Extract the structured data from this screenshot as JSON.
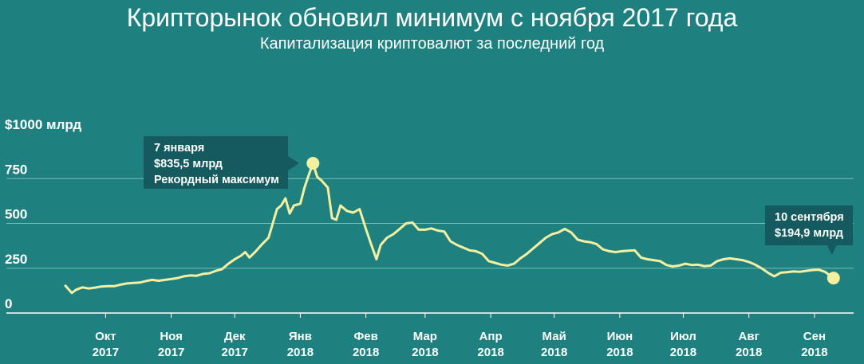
{
  "title": "Крипторынок обновил минимум с ноября 2017 года",
  "subtitle": "Капитализация криптовалют за последний год",
  "colors": {
    "background": "#1f8080",
    "line": "#f5f0a0",
    "gridline": "#7bb9b9",
    "annotation_box": "#155a5e"
  },
  "chart_data": {
    "type": "line",
    "title": "Крипторынок обновил минимум с ноября 2017 года",
    "subtitle": "Капитализация криптовалют за последний год",
    "xlabel": "",
    "ylabel": "",
    "ylim": [
      0,
      1000
    ],
    "yticks": [
      {
        "value": 0,
        "label": "0"
      },
      {
        "value": 250,
        "label": "250"
      },
      {
        "value": 500,
        "label": "500"
      },
      {
        "value": 750,
        "label": "750"
      },
      {
        "value": 1000,
        "label": "$1000 млрд"
      }
    ],
    "xlim": [
      "2017-09-12",
      "2018-09-18"
    ],
    "xticks": [
      {
        "date": "2017-10-01",
        "month": "Окт",
        "year": "2017"
      },
      {
        "date": "2017-11-01",
        "month": "Ноя",
        "year": "2017"
      },
      {
        "date": "2017-12-01",
        "month": "Дек",
        "year": "2017"
      },
      {
        "date": "2018-01-01",
        "month": "Янв",
        "year": "2018"
      },
      {
        "date": "2018-02-01",
        "month": "Фев",
        "year": "2018"
      },
      {
        "date": "2018-03-01",
        "month": "Мар",
        "year": "2018"
      },
      {
        "date": "2018-04-01",
        "month": "Апр",
        "year": "2018"
      },
      {
        "date": "2018-05-01",
        "month": "Май",
        "year": "2018"
      },
      {
        "date": "2018-06-01",
        "month": "Июн",
        "year": "2018"
      },
      {
        "date": "2018-07-01",
        "month": "Июл",
        "year": "2018"
      },
      {
        "date": "2018-08-01",
        "month": "Авг",
        "year": "2018"
      },
      {
        "date": "2018-09-01",
        "month": "Сен",
        "year": "2018"
      }
    ],
    "grid": "horizontal",
    "series": [
      {
        "points": [
          [
            "2017-09-12",
            152
          ],
          [
            "2017-09-15",
            112
          ],
          [
            "2017-09-17",
            130
          ],
          [
            "2017-09-20",
            143
          ],
          [
            "2017-09-23",
            137
          ],
          [
            "2017-09-26",
            142
          ],
          [
            "2017-09-29",
            148
          ],
          [
            "2017-10-02",
            150
          ],
          [
            "2017-10-05",
            150
          ],
          [
            "2017-10-08",
            158
          ],
          [
            "2017-10-11",
            165
          ],
          [
            "2017-10-14",
            168
          ],
          [
            "2017-10-17",
            170
          ],
          [
            "2017-10-20",
            178
          ],
          [
            "2017-10-23",
            185
          ],
          [
            "2017-10-26",
            180
          ],
          [
            "2017-10-29",
            185
          ],
          [
            "2017-11-01",
            190
          ],
          [
            "2017-11-04",
            195
          ],
          [
            "2017-11-07",
            205
          ],
          [
            "2017-11-10",
            210
          ],
          [
            "2017-11-13",
            208
          ],
          [
            "2017-11-16",
            218
          ],
          [
            "2017-11-19",
            222
          ],
          [
            "2017-11-22",
            235
          ],
          [
            "2017-11-25",
            245
          ],
          [
            "2017-11-28",
            275
          ],
          [
            "2017-12-01",
            300
          ],
          [
            "2017-12-04",
            320
          ],
          [
            "2017-12-06",
            340
          ],
          [
            "2017-12-08",
            310
          ],
          [
            "2017-12-11",
            345
          ],
          [
            "2017-12-14",
            385
          ],
          [
            "2017-12-17",
            420
          ],
          [
            "2017-12-19",
            500
          ],
          [
            "2017-12-21",
            580
          ],
          [
            "2017-12-23",
            600
          ],
          [
            "2017-12-25",
            640
          ],
          [
            "2017-12-27",
            555
          ],
          [
            "2017-12-29",
            600
          ],
          [
            "2018-01-01",
            610
          ],
          [
            "2018-01-03",
            700
          ],
          [
            "2018-01-05",
            770
          ],
          [
            "2018-01-07",
            835.5
          ],
          [
            "2018-01-09",
            760
          ],
          [
            "2018-01-11",
            740
          ],
          [
            "2018-01-14",
            700
          ],
          [
            "2018-01-16",
            530
          ],
          [
            "2018-01-18",
            520
          ],
          [
            "2018-01-20",
            600
          ],
          [
            "2018-01-23",
            570
          ],
          [
            "2018-01-26",
            560
          ],
          [
            "2018-01-29",
            580
          ],
          [
            "2018-02-01",
            470
          ],
          [
            "2018-02-03",
            400
          ],
          [
            "2018-02-06",
            300
          ],
          [
            "2018-02-08",
            380
          ],
          [
            "2018-02-11",
            420
          ],
          [
            "2018-02-14",
            440
          ],
          [
            "2018-02-17",
            470
          ],
          [
            "2018-02-20",
            500
          ],
          [
            "2018-02-23",
            505
          ],
          [
            "2018-02-26",
            465
          ],
          [
            "2018-03-01",
            465
          ],
          [
            "2018-03-04",
            472
          ],
          [
            "2018-03-07",
            460
          ],
          [
            "2018-03-10",
            455
          ],
          [
            "2018-03-13",
            400
          ],
          [
            "2018-03-16",
            380
          ],
          [
            "2018-03-19",
            365
          ],
          [
            "2018-03-22",
            350
          ],
          [
            "2018-03-25",
            345
          ],
          [
            "2018-03-28",
            330
          ],
          [
            "2018-03-31",
            290
          ],
          [
            "2018-04-03",
            280
          ],
          [
            "2018-04-06",
            270
          ],
          [
            "2018-04-09",
            265
          ],
          [
            "2018-04-12",
            275
          ],
          [
            "2018-04-15",
            305
          ],
          [
            "2018-04-18",
            330
          ],
          [
            "2018-04-21",
            360
          ],
          [
            "2018-04-24",
            390
          ],
          [
            "2018-04-27",
            420
          ],
          [
            "2018-04-30",
            440
          ],
          [
            "2018-05-03",
            450
          ],
          [
            "2018-05-06",
            470
          ],
          [
            "2018-05-09",
            450
          ],
          [
            "2018-05-12",
            410
          ],
          [
            "2018-05-15",
            400
          ],
          [
            "2018-05-18",
            395
          ],
          [
            "2018-05-21",
            385
          ],
          [
            "2018-05-24",
            355
          ],
          [
            "2018-05-27",
            345
          ],
          [
            "2018-05-30",
            340
          ],
          [
            "2018-06-02",
            345
          ],
          [
            "2018-06-05",
            348
          ],
          [
            "2018-06-08",
            350
          ],
          [
            "2018-06-11",
            310
          ],
          [
            "2018-06-14",
            300
          ],
          [
            "2018-06-17",
            295
          ],
          [
            "2018-06-20",
            290
          ],
          [
            "2018-06-23",
            268
          ],
          [
            "2018-06-26",
            260
          ],
          [
            "2018-06-29",
            265
          ],
          [
            "2018-07-02",
            275
          ],
          [
            "2018-07-05",
            268
          ],
          [
            "2018-07-08",
            270
          ],
          [
            "2018-07-11",
            262
          ],
          [
            "2018-07-14",
            265
          ],
          [
            "2018-07-17",
            290
          ],
          [
            "2018-07-20",
            300
          ],
          [
            "2018-07-23",
            305
          ],
          [
            "2018-07-26",
            300
          ],
          [
            "2018-07-29",
            295
          ],
          [
            "2018-08-01",
            285
          ],
          [
            "2018-08-04",
            270
          ],
          [
            "2018-08-07",
            250
          ],
          [
            "2018-08-10",
            225
          ],
          [
            "2018-08-13",
            205
          ],
          [
            "2018-08-16",
            225
          ],
          [
            "2018-08-19",
            228
          ],
          [
            "2018-08-22",
            232
          ],
          [
            "2018-08-25",
            230
          ],
          [
            "2018-08-28",
            235
          ],
          [
            "2018-08-31",
            240
          ],
          [
            "2018-09-03",
            242
          ],
          [
            "2018-09-06",
            230
          ],
          [
            "2018-09-10",
            194.9
          ]
        ]
      }
    ],
    "annotations": [
      {
        "date": "2018-01-07",
        "value": 835.5,
        "lines": [
          "7 января",
          "$835,5 млрд",
          "Рекордный максимум"
        ]
      },
      {
        "date": "2018-09-10",
        "value": 194.9,
        "lines": [
          "10 сентября",
          "$194,9 млрд"
        ]
      }
    ]
  }
}
